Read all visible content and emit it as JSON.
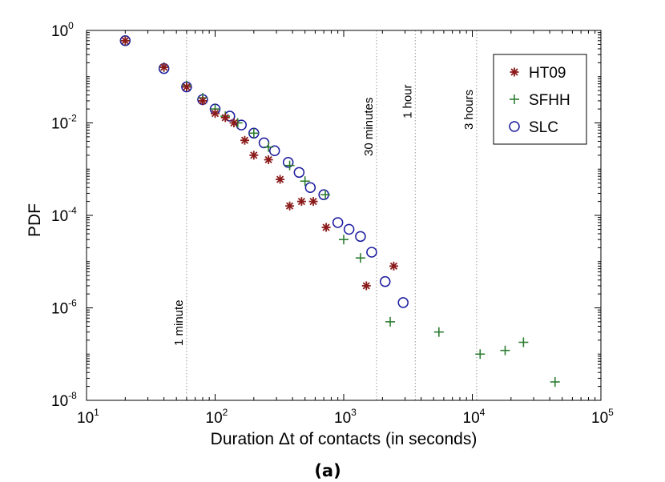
{
  "chart_data": {
    "type": "scatter",
    "x_scale": "log",
    "y_scale": "log",
    "xlabel": "Duration Δt of contacts (in seconds)",
    "ylabel": "PDF",
    "caption": "(a)",
    "xlim": [
      10,
      100000
    ],
    "ylim": [
      1e-08,
      1
    ],
    "x_ticks": [
      {
        "base": "10",
        "exp": "1"
      },
      {
        "base": "10",
        "exp": "2"
      },
      {
        "base": "10",
        "exp": "3"
      },
      {
        "base": "10",
        "exp": "4"
      },
      {
        "base": "10",
        "exp": "5"
      }
    ],
    "y_ticks": [
      {
        "base": "10",
        "exp": "0"
      },
      {
        "base": "10",
        "exp": "-2"
      },
      {
        "base": "10",
        "exp": "-4"
      },
      {
        "base": "10",
        "exp": "-6"
      },
      {
        "base": "10",
        "exp": "-8"
      }
    ],
    "reference_lines": [
      {
        "x": 60,
        "label": "1 minute"
      },
      {
        "x": 1800,
        "label": "30 minutes"
      },
      {
        "x": 3600,
        "label": "1 hour"
      },
      {
        "x": 10800,
        "label": "3 hours"
      }
    ],
    "legend": "top-right",
    "series": [
      {
        "name": "HT09",
        "marker": "asterisk",
        "color": "#8b1a1a",
        "points": [
          [
            20,
            0.6
          ],
          [
            40,
            0.16
          ],
          [
            60,
            0.06
          ],
          [
            80,
            0.03
          ],
          [
            100,
            0.016
          ],
          [
            120,
            0.013
          ],
          [
            140,
            0.01
          ],
          [
            170,
            0.0042
          ],
          [
            200,
            0.002
          ],
          [
            260,
            0.0016
          ],
          [
            320,
            0.0006
          ],
          [
            380,
            0.00016
          ],
          [
            470,
            0.0002
          ],
          [
            580,
            0.0002
          ],
          [
            730,
            5.5e-05
          ],
          [
            1500,
            3e-06
          ],
          [
            2450,
            8e-06
          ]
        ]
      },
      {
        "name": "SFHH",
        "marker": "plus",
        "color": "#2e7d32",
        "points": [
          [
            20,
            0.6
          ],
          [
            40,
            0.16
          ],
          [
            60,
            0.065
          ],
          [
            80,
            0.035
          ],
          [
            100,
            0.02
          ],
          [
            120,
            0.014
          ],
          [
            150,
            0.01
          ],
          [
            200,
            0.006
          ],
          [
            260,
            0.003
          ],
          [
            380,
            0.0012
          ],
          [
            500,
            0.00055
          ],
          [
            720,
            0.00028
          ],
          [
            1000,
            3e-05
          ],
          [
            1350,
            1.2e-05
          ],
          [
            2300,
            5e-07
          ],
          [
            5500,
            3e-07
          ],
          [
            11500,
            1e-07
          ],
          [
            18000,
            1.2e-07
          ],
          [
            25000,
            1.8e-07
          ],
          [
            44000,
            2.5e-08
          ]
        ]
      },
      {
        "name": "SLC",
        "marker": "circle",
        "color": "#1a1a9e",
        "points": [
          [
            20,
            0.6
          ],
          [
            40,
            0.15
          ],
          [
            60,
            0.06
          ],
          [
            80,
            0.032
          ],
          [
            100,
            0.02
          ],
          [
            130,
            0.014
          ],
          [
            160,
            0.009
          ],
          [
            200,
            0.006
          ],
          [
            240,
            0.0037
          ],
          [
            290,
            0.0025
          ],
          [
            370,
            0.0014
          ],
          [
            450,
            0.00085
          ],
          [
            550,
            0.0004
          ],
          [
            700,
            0.00028
          ],
          [
            900,
            7e-05
          ],
          [
            1100,
            5e-05
          ],
          [
            1350,
            3.5e-05
          ],
          [
            1650,
            1.6e-05
          ],
          [
            2100,
            3.7e-06
          ],
          [
            2900,
            1.3e-06
          ]
        ]
      }
    ]
  }
}
